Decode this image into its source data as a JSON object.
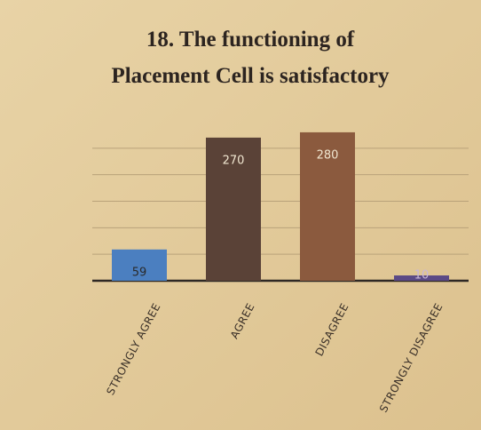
{
  "chart_data": {
    "type": "bar",
    "title": [
      "18. The functioning of",
      "Placement Cell is satisfactory"
    ],
    "categories": [
      "STRONGLY AGREE",
      "AGREE",
      "DISAGREE",
      "STRONGLY DISAGREE"
    ],
    "values": [
      59,
      270,
      280,
      10
    ],
    "colors": [
      "#4b7fc0",
      "#5a4237",
      "#8b5a3e",
      "#5b4a86"
    ],
    "label_colors": [
      "#2a2a2a",
      "#f0e6d0",
      "#f0e6d0",
      "#c9b8d8"
    ],
    "ylim": [
      0,
      300
    ],
    "yticks": [
      0,
      50,
      100,
      150,
      200,
      250
    ],
    "grid": true,
    "ytick_labels": false
  }
}
